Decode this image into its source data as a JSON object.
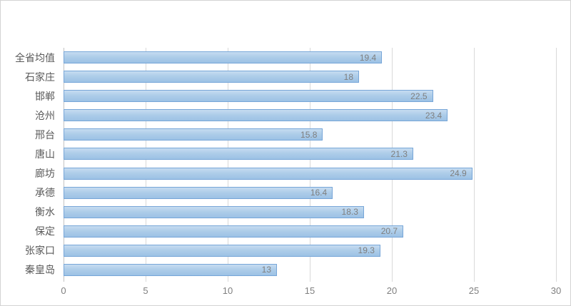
{
  "chart": {
    "title": "",
    "colors": {
      "bar_fill_top": "#c6dcf1",
      "bar_fill_bottom": "#9cc2e5",
      "bar_border": "#77a6d8",
      "gridline": "#d9d9d9",
      "axis_line": "#c3c3c3",
      "category_text": "#595959",
      "value_text": "#7f7f7f",
      "tick_text": "#7f7f7f",
      "background": "#ffffff",
      "frame_border": "#d3d3d3"
    }
  },
  "chart_data": {
    "type": "bar",
    "orientation": "horizontal",
    "title": "",
    "xlabel": "",
    "ylabel": "",
    "categories": [
      "全省均值",
      "石家庄",
      "邯郸",
      "沧州",
      "邢台",
      "唐山",
      "廊坊",
      "承德",
      "衡水",
      "保定",
      "张家口",
      "秦皇岛"
    ],
    "values": [
      19.4,
      18,
      22.5,
      23.4,
      15.8,
      21.3,
      24.9,
      16.4,
      18.3,
      20.7,
      19.3,
      13
    ],
    "value_labels": [
      "19.4",
      "18",
      "22.5",
      "23.4",
      "15.8",
      "21.3",
      "24.9",
      "16.4",
      "18.3",
      "20.7",
      "19.3",
      "13"
    ],
    "xlim": [
      0,
      30
    ],
    "x_ticks": [
      "0",
      "5",
      "10",
      "15",
      "20",
      "25",
      "30"
    ],
    "grid": "vertical",
    "legend": "none",
    "data_labels": "inside-end"
  }
}
